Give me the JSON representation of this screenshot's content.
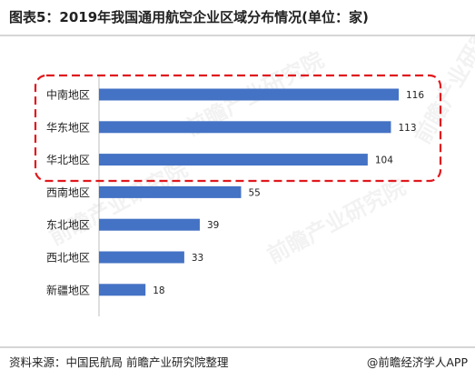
{
  "title": "图表5：2019年我国通用航空企业区域分布情况(单位：家)",
  "footer": {
    "source": "资料来源：中国民航局 前瞻产业研究院整理",
    "brand": "@前瞻经济学人APP"
  },
  "watermark": "前瞻产业研究院",
  "colors": {
    "bar": "#4472c4",
    "highlight_box": "#e0191e",
    "text": "#222222"
  },
  "chart_data": {
    "type": "bar",
    "orientation": "horizontal",
    "title": "",
    "xlabel": "",
    "ylabel": "",
    "categories": [
      "中南地区",
      "华东地区",
      "华北地区",
      "西南地区",
      "东北地区",
      "西北地区",
      "新疆地区"
    ],
    "values": [
      116,
      113,
      104,
      55,
      39,
      33,
      18
    ],
    "xlim": [
      0,
      116
    ],
    "grid": false,
    "data_labels": true,
    "highlighted_categories": [
      "中南地区",
      "华东地区",
      "华北地区"
    ]
  }
}
